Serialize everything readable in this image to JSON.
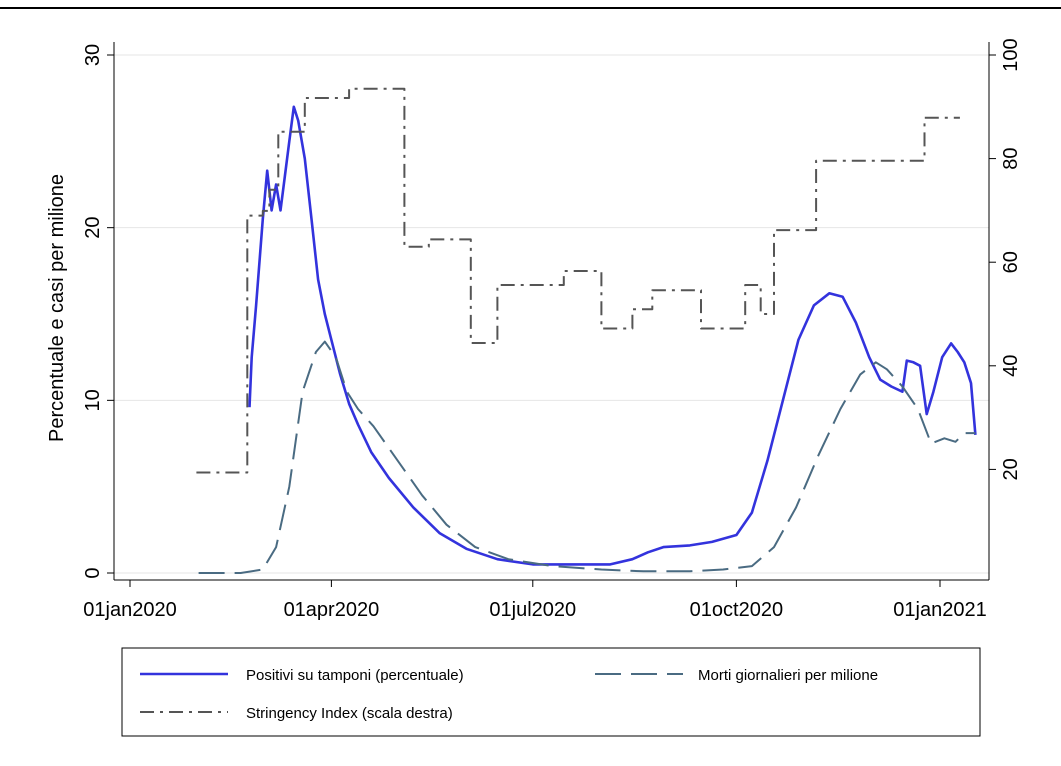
{
  "chart_data": {
    "type": "line",
    "title": "",
    "ylabel": "Percentuale e casi per milione",
    "y2label": "",
    "x_ticks": [
      "01jan2020",
      "01apr2020",
      "01jul2020",
      "01oct2020",
      "01jan2021"
    ],
    "y_ticks": [
      "0",
      "10",
      "20",
      "30"
    ],
    "y2_ticks": [
      "20",
      "40",
      "60",
      "80",
      "100"
    ],
    "ylim": [
      0,
      30
    ],
    "y2lim": [
      0,
      100
    ],
    "xlim": [
      "2019-12-15",
      "2021-01-27"
    ],
    "grid": true,
    "legend_position": "bottom",
    "series": [
      {
        "name": "Positivi su tamponi (percentuale)",
        "axis": "left",
        "style": "solid",
        "color": "#3333dd",
        "points": [
          [
            "2020-02-24",
            9.6
          ],
          [
            "2020-02-25",
            12.5
          ],
          [
            "2020-02-27",
            15.5
          ],
          [
            "2020-03-01",
            20.5
          ],
          [
            "2020-03-03",
            23.3
          ],
          [
            "2020-03-05",
            21.0
          ],
          [
            "2020-03-07",
            22.5
          ],
          [
            "2020-03-09",
            21.0
          ],
          [
            "2020-03-11",
            23.0
          ],
          [
            "2020-03-13",
            25.0
          ],
          [
            "2020-03-15",
            27.0
          ],
          [
            "2020-03-17",
            26.2
          ],
          [
            "2020-03-20",
            24.0
          ],
          [
            "2020-03-23",
            20.5
          ],
          [
            "2020-03-26",
            17.0
          ],
          [
            "2020-03-29",
            15.0
          ],
          [
            "2020-04-01",
            13.5
          ],
          [
            "2020-04-05",
            11.5
          ],
          [
            "2020-04-09",
            9.8
          ],
          [
            "2020-04-13",
            8.6
          ],
          [
            "2020-04-19",
            7.0
          ],
          [
            "2020-04-27",
            5.5
          ],
          [
            "2020-05-08",
            3.8
          ],
          [
            "2020-05-20",
            2.3
          ],
          [
            "2020-06-01",
            1.4
          ],
          [
            "2020-06-15",
            0.8
          ],
          [
            "2020-07-01",
            0.5
          ],
          [
            "2020-07-20",
            0.5
          ],
          [
            "2020-08-05",
            0.5
          ],
          [
            "2020-08-15",
            0.8
          ],
          [
            "2020-08-22",
            1.2
          ],
          [
            "2020-08-29",
            1.5
          ],
          [
            "2020-09-10",
            1.6
          ],
          [
            "2020-09-20",
            1.8
          ],
          [
            "2020-10-01",
            2.2
          ],
          [
            "2020-10-08",
            3.5
          ],
          [
            "2020-10-15",
            6.5
          ],
          [
            "2020-10-22",
            10.0
          ],
          [
            "2020-10-29",
            13.5
          ],
          [
            "2020-11-05",
            15.5
          ],
          [
            "2020-11-12",
            16.2
          ],
          [
            "2020-11-18",
            16.0
          ],
          [
            "2020-11-24",
            14.5
          ],
          [
            "2020-11-30",
            12.5
          ],
          [
            "2020-12-05",
            11.2
          ],
          [
            "2020-12-10",
            10.8
          ],
          [
            "2020-12-15",
            10.5
          ],
          [
            "2020-12-17",
            12.3
          ],
          [
            "2020-12-20",
            12.2
          ],
          [
            "2020-12-23",
            12.0
          ],
          [
            "2020-12-26",
            9.2
          ],
          [
            "2020-12-29",
            10.5
          ],
          [
            "2021-01-02",
            12.5
          ],
          [
            "2021-01-06",
            13.3
          ],
          [
            "2021-01-09",
            12.8
          ],
          [
            "2021-01-12",
            12.2
          ],
          [
            "2021-01-15",
            11.0
          ],
          [
            "2021-01-17",
            8.0
          ]
        ]
      },
      {
        "name": "Morti giornalieri per milione",
        "axis": "left",
        "style": "longdash",
        "color": "#4a6b82",
        "points": [
          [
            "2020-02-01",
            0.0
          ],
          [
            "2020-02-20",
            0.0
          ],
          [
            "2020-03-01",
            0.2
          ],
          [
            "2020-03-07",
            1.5
          ],
          [
            "2020-03-13",
            5.0
          ],
          [
            "2020-03-19",
            10.5
          ],
          [
            "2020-03-25",
            12.8
          ],
          [
            "2020-03-29",
            13.4
          ],
          [
            "2020-04-03",
            12.5
          ],
          [
            "2020-04-08",
            10.5
          ],
          [
            "2020-04-13",
            9.5
          ],
          [
            "2020-04-20",
            8.5
          ],
          [
            "2020-05-01",
            6.5
          ],
          [
            "2020-05-12",
            4.5
          ],
          [
            "2020-05-23",
            2.8
          ],
          [
            "2020-06-05",
            1.5
          ],
          [
            "2020-06-20",
            0.8
          ],
          [
            "2020-07-10",
            0.4
          ],
          [
            "2020-08-01",
            0.2
          ],
          [
            "2020-08-20",
            0.1
          ],
          [
            "2020-09-10",
            0.1
          ],
          [
            "2020-09-25",
            0.2
          ],
          [
            "2020-10-08",
            0.4
          ],
          [
            "2020-10-18",
            1.5
          ],
          [
            "2020-10-28",
            3.8
          ],
          [
            "2020-11-07",
            6.8
          ],
          [
            "2020-11-17",
            9.5
          ],
          [
            "2020-11-26",
            11.5
          ],
          [
            "2020-12-03",
            12.2
          ],
          [
            "2020-12-08",
            11.8
          ],
          [
            "2020-12-15",
            10.8
          ],
          [
            "2020-12-22",
            9.5
          ],
          [
            "2020-12-28",
            7.5
          ],
          [
            "2021-01-03",
            7.8
          ],
          [
            "2021-01-08",
            7.6
          ],
          [
            "2021-01-12",
            8.1
          ],
          [
            "2021-01-17",
            8.1
          ]
        ]
      },
      {
        "name": "Stringency Index (scala destra)",
        "axis": "right",
        "style": "dashdot",
        "color": "#555555",
        "points": [
          [
            "2020-01-31",
            19.4
          ],
          [
            "2020-02-20",
            19.4
          ],
          [
            "2020-02-23",
            69.0
          ],
          [
            "2020-03-01",
            69.9
          ],
          [
            "2020-03-04",
            74.0
          ],
          [
            "2020-03-08",
            85.2
          ],
          [
            "2020-03-20",
            91.7
          ],
          [
            "2020-04-09",
            93.5
          ],
          [
            "2020-05-04",
            63.0
          ],
          [
            "2020-05-15",
            64.4
          ],
          [
            "2020-06-03",
            44.4
          ],
          [
            "2020-06-15",
            55.6
          ],
          [
            "2020-07-15",
            58.3
          ],
          [
            "2020-08-01",
            47.2
          ],
          [
            "2020-08-15",
            50.9
          ],
          [
            "2020-08-24",
            54.6
          ],
          [
            "2020-09-15",
            47.2
          ],
          [
            "2020-10-05",
            55.6
          ],
          [
            "2020-10-12",
            50.0
          ],
          [
            "2020-10-18",
            66.2
          ],
          [
            "2020-11-06",
            79.6
          ],
          [
            "2020-12-25",
            87.9
          ],
          [
            "2021-01-05",
            87.9
          ],
          [
            "2021-01-10",
            87.9
          ]
        ]
      }
    ]
  }
}
